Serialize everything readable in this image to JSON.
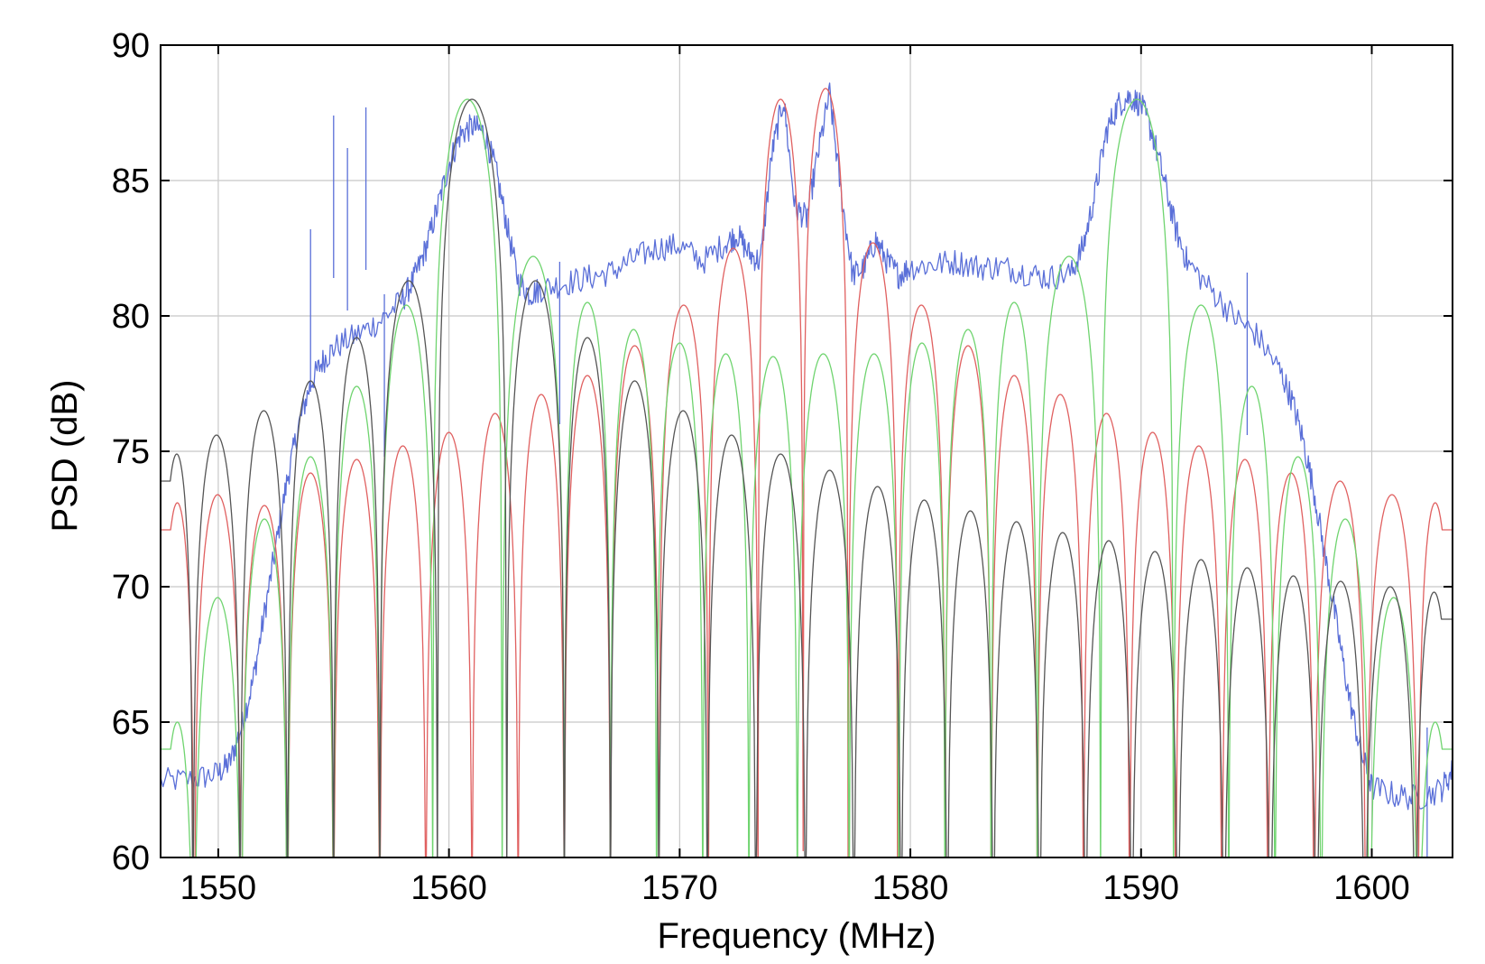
{
  "chart_data": {
    "type": "line",
    "title": "",
    "xlabel": "Frequency (MHz)",
    "ylabel": "PSD (dB)",
    "xlim": [
      1547.5,
      1603.5
    ],
    "ylim": [
      60,
      90
    ],
    "xticks": [
      1550,
      1560,
      1570,
      1580,
      1590,
      1600
    ],
    "yticks": [
      60,
      65,
      70,
      75,
      80,
      85,
      90
    ],
    "xtick_labels": [
      "1550",
      "1560",
      "1570",
      "1580",
      "1590",
      "1600"
    ],
    "ytick_labels": [
      "60",
      "65",
      "70",
      "75",
      "80",
      "85",
      "90"
    ],
    "grid": true,
    "legend": "none",
    "series": [
      {
        "color": "#5a6fd8",
        "noise": 0.5,
        "spikes": [
          [
            1554.0,
            83.2
          ],
          [
            1555.0,
            87.4
          ],
          [
            1555.6,
            86.2
          ],
          [
            1556.4,
            87.7
          ],
          [
            1557.2,
            80.8
          ],
          [
            1564.8,
            82.0
          ],
          [
            1594.6,
            81.6
          ],
          [
            1602.4,
            64.8
          ]
        ],
        "x": [
          1547.5,
          1549.0,
          1550.0,
          1550.5,
          1551.0,
          1551.5,
          1552.0,
          1552.5,
          1553.0,
          1553.5,
          1554.0,
          1554.5,
          1555.0,
          1556.0,
          1557.0,
          1558.0,
          1558.5,
          1559.0,
          1559.5,
          1560.0,
          1560.5,
          1561.0,
          1561.5,
          1562.0,
          1562.5,
          1563.0,
          1563.5,
          1564.0,
          1565.0,
          1566.0,
          1567.0,
          1568.0,
          1569.0,
          1570.0,
          1571.0,
          1572.0,
          1572.5,
          1573.0,
          1573.5,
          1574.0,
          1574.5,
          1575.0,
          1575.5,
          1576.0,
          1576.5,
          1577.0,
          1577.5,
          1578.0,
          1578.5,
          1579.0,
          1579.5,
          1580.0,
          1581.0,
          1582.0,
          1583.0,
          1584.0,
          1585.0,
          1586.0,
          1587.0,
          1587.5,
          1588.0,
          1588.5,
          1589.0,
          1589.5,
          1590.0,
          1590.5,
          1591.0,
          1591.5,
          1592.0,
          1593.0,
          1594.0,
          1595.0,
          1596.0,
          1596.5,
          1597.0,
          1597.5,
          1598.0,
          1598.5,
          1599.0,
          1599.5,
          1600.0,
          1601.0,
          1602.0,
          1603.0,
          1603.5
        ],
        "y": [
          62.8,
          62.9,
          63.1,
          63.5,
          64.8,
          66.5,
          69.0,
          71.5,
          74.0,
          76.0,
          77.5,
          78.3,
          78.8,
          79.3,
          79.8,
          80.6,
          81.4,
          82.5,
          84.0,
          85.6,
          86.7,
          87.0,
          86.8,
          85.5,
          83.4,
          81.3,
          80.8,
          81.0,
          81.2,
          81.4,
          81.6,
          82.1,
          82.5,
          82.6,
          82.0,
          82.7,
          83.0,
          82.3,
          82.0,
          86.0,
          88.0,
          84.0,
          83.6,
          86.0,
          88.2,
          84.5,
          81.5,
          81.8,
          82.8,
          82.0,
          81.5,
          81.8,
          81.9,
          82.0,
          81.8,
          81.8,
          81.6,
          81.4,
          81.6,
          82.6,
          84.5,
          86.8,
          87.8,
          88.1,
          87.8,
          86.7,
          85.0,
          83.2,
          82.0,
          81.0,
          80.0,
          79.3,
          78.0,
          77.0,
          75.5,
          73.5,
          71.0,
          68.5,
          66.0,
          64.0,
          62.6,
          62.3,
          62.2,
          62.5,
          63.2
        ]
      },
      {
        "color": "#e06060",
        "peaks": [
          [
            1547.9,
            73.1
          ],
          [
            1550.0,
            73.4
          ],
          [
            1552.0,
            73.0
          ],
          [
            1554.0,
            74.2
          ],
          [
            1556.0,
            74.7
          ],
          [
            1558.0,
            75.2
          ],
          [
            1560.0,
            75.7
          ],
          [
            1562.0,
            76.4
          ],
          [
            1564.0,
            77.1
          ],
          [
            1566.0,
            77.8
          ],
          [
            1568.0,
            78.9
          ],
          [
            1570.2,
            80.4
          ],
          [
            1572.3,
            82.5
          ],
          [
            1574.5,
            88.0
          ],
          [
            1576.2,
            88.4
          ],
          [
            1578.4,
            82.7
          ],
          [
            1580.5,
            80.4
          ],
          [
            1582.5,
            78.9
          ],
          [
            1584.5,
            77.8
          ],
          [
            1586.5,
            77.1
          ],
          [
            1588.5,
            76.4
          ],
          [
            1590.5,
            75.7
          ],
          [
            1592.5,
            75.2
          ],
          [
            1594.5,
            74.7
          ],
          [
            1596.5,
            74.2
          ],
          [
            1598.5,
            73.9
          ],
          [
            1601.0,
            73.4
          ],
          [
            1603.0,
            73.1
          ]
        ]
      },
      {
        "color": "#6fd46f",
        "peaks": [
          [
            1547.9,
            65.0
          ],
          [
            1550.0,
            69.6
          ],
          [
            1552.0,
            72.5
          ],
          [
            1554.0,
            74.8
          ],
          [
            1556.0,
            77.4
          ],
          [
            1558.0,
            80.4
          ],
          [
            1560.6,
            88.0
          ],
          [
            1564.0,
            82.2
          ],
          [
            1566.0,
            80.5
          ],
          [
            1568.0,
            79.5
          ],
          [
            1570.0,
            79.0
          ],
          [
            1572.0,
            78.6
          ],
          [
            1574.0,
            78.5
          ],
          [
            1576.2,
            78.6
          ],
          [
            1578.5,
            78.6
          ],
          [
            1580.5,
            79.0
          ],
          [
            1582.5,
            79.5
          ],
          [
            1584.5,
            80.5
          ],
          [
            1586.5,
            82.2
          ],
          [
            1590.0,
            88.0
          ],
          [
            1592.8,
            80.4
          ],
          [
            1594.8,
            77.4
          ],
          [
            1596.8,
            74.8
          ],
          [
            1598.8,
            72.5
          ],
          [
            1601.0,
            69.6
          ],
          [
            1603.0,
            65.0
          ]
        ]
      },
      {
        "color": "#555555",
        "peaks": [
          [
            1547.9,
            74.9
          ],
          [
            1549.9,
            75.6
          ],
          [
            1552.0,
            76.5
          ],
          [
            1554.0,
            77.6
          ],
          [
            1556.0,
            79.2
          ],
          [
            1558.0,
            81.3
          ],
          [
            1561.0,
            88.0
          ],
          [
            1564.0,
            81.3
          ],
          [
            1566.0,
            79.2
          ],
          [
            1568.0,
            77.6
          ],
          [
            1570.2,
            76.5
          ],
          [
            1572.2,
            75.6
          ],
          [
            1574.4,
            74.9
          ],
          [
            1576.5,
            74.3
          ],
          [
            1578.6,
            73.7
          ],
          [
            1580.6,
            73.2
          ],
          [
            1582.6,
            72.8
          ],
          [
            1584.6,
            72.4
          ],
          [
            1586.6,
            72.0
          ],
          [
            1588.6,
            71.7
          ],
          [
            1590.6,
            71.3
          ],
          [
            1592.6,
            71.0
          ],
          [
            1594.6,
            70.7
          ],
          [
            1596.6,
            70.4
          ],
          [
            1598.6,
            70.2
          ],
          [
            1600.8,
            70.0
          ],
          [
            1603.0,
            69.8
          ]
        ]
      }
    ]
  }
}
